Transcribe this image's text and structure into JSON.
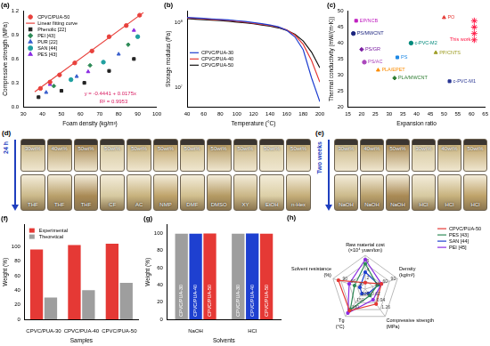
{
  "chart_data": [
    {
      "type": "scatter",
      "title": "(a)",
      "x_label": "Foam density (kg/m³)",
      "y_label": "Compressive strength (MPa)",
      "xlim": [
        30,
        100
      ],
      "xticks": [
        30,
        40,
        50,
        60,
        70,
        80,
        90,
        100
      ],
      "ylim": [
        0,
        1.2
      ],
      "yticks": [
        {
          "value": 0,
          "label": "0.0"
        },
        0.3,
        0.6,
        0.9,
        1.2
      ],
      "grid": false,
      "legend": "upper left",
      "series": [
        {
          "name": "CPVC/PUA-50",
          "color": "#e8413c",
          "marker": "circle",
          "x": [
            39,
            44,
            49,
            57,
            66,
            75,
            84,
            91
          ],
          "values": [
            0.23,
            0.31,
            0.4,
            0.55,
            0.7,
            0.88,
            1.02,
            1.15
          ]
        },
        {
          "name": "Linear fitting curve",
          "color": "#e8413c",
          "type": "line",
          "line_style": "solid",
          "x": [
            36,
            93
          ],
          "values": [
            0.186,
            1.183
          ]
        },
        {
          "name": "Phenolic [22]",
          "color": "#222222",
          "marker": "square",
          "x": [
            38,
            50,
            62,
            75,
            88
          ],
          "values": [
            0.12,
            0.2,
            0.3,
            0.45,
            0.6
          ]
        },
        {
          "name": "PEI [43]",
          "color": "#2e8b57",
          "marker": "diamond",
          "x": [
            46,
            65,
            85
          ],
          "values": [
            0.26,
            0.52,
            0.78
          ]
        },
        {
          "name": "PUR [22]",
          "color": "#3a5fcd",
          "marker": "triangle",
          "x": [
            42,
            58,
            80
          ],
          "values": [
            0.18,
            0.38,
            0.66
          ]
        },
        {
          "name": "SAN [44]",
          "color": "#20a0a0",
          "marker": "circle",
          "x": [
            55,
            72,
            90
          ],
          "values": [
            0.34,
            0.56,
            0.88
          ]
        },
        {
          "name": "PES [43]",
          "color": "#8a2be2",
          "marker": "triangle",
          "x": [
            44,
            64,
            88
          ],
          "values": [
            0.28,
            0.44,
            0.96
          ]
        }
      ],
      "annotations": [
        {
          "text": "y = -0.4441 + 0.0175x",
          "x": 62,
          "y": 0.16
        },
        {
          "text": "R² = 0.9953",
          "x": 70,
          "y": 0.06
        }
      ]
    },
    {
      "type": "line",
      "title": "(b)",
      "x_label": "Temperature (°C)",
      "y_label": "Storage modulus (Pa)",
      "log": "y",
      "xlim": [
        40,
        200
      ],
      "xticks": [
        40,
        60,
        80,
        100,
        120,
        140,
        160,
        180,
        200
      ],
      "ylim": [
        5000000,
        150000000
      ],
      "yticks": [
        {
          "value": 10000000,
          "label": "10⁷"
        },
        {
          "value": 100000000,
          "label": "10⁸"
        }
      ],
      "grid": false,
      "legend": "left",
      "x": [
        40,
        50,
        60,
        70,
        80,
        90,
        100,
        110,
        120,
        130,
        140,
        150,
        160,
        170,
        180,
        190,
        200
      ],
      "series": [
        {
          "name": "CPVC/PUA-30",
          "color": "#1f3fd0",
          "values": [
            120000000,
            118000000,
            116000000,
            114000000,
            112000000,
            110000000,
            107000000,
            104000000,
            100000000,
            96000000,
            92000000,
            86000000,
            76000000,
            60000000,
            38000000,
            14000000,
            6000000
          ]
        },
        {
          "name": "CPVC/PUA-40",
          "color": "#e53935",
          "values": [
            118000000,
            116000000,
            114000000,
            112000000,
            110000000,
            108000000,
            105000000,
            102000000,
            98000000,
            94000000,
            90000000,
            85000000,
            77000000,
            64000000,
            46000000,
            26000000,
            12000000
          ]
        },
        {
          "name": "CPVC/PUA-50",
          "color": "#111111",
          "values": [
            115000000,
            113000000,
            111000000,
            109000000,
            107000000,
            105000000,
            102000000,
            99000000,
            96000000,
            92000000,
            88000000,
            83000000,
            76000000,
            66000000,
            52000000,
            35000000,
            20000000
          ]
        }
      ]
    },
    {
      "type": "scatter",
      "title": "(c)",
      "x_label": "Expansion ratio",
      "y_label": "Thermal conductivity (mW/(m·K))",
      "xlim": [
        15,
        65
      ],
      "xticks": [
        15,
        20,
        25,
        30,
        35,
        40,
        45,
        50,
        55,
        60,
        65
      ],
      "ylim": [
        20,
        50
      ],
      "yticks": [
        20,
        25,
        30,
        35,
        40,
        45,
        50
      ],
      "grid": false,
      "legend": "points",
      "series": [
        {
          "name": "EP/NCB",
          "color": "#c020c0",
          "marker": "square",
          "x": [
            18
          ],
          "values": [
            47
          ]
        },
        {
          "name": "PS/MWCNT",
          "color": "#1a237e",
          "marker": "circle",
          "x": [
            17
          ],
          "values": [
            43
          ]
        },
        {
          "name": "PO",
          "color": "#e53935",
          "marker": "triangle",
          "x": [
            50
          ],
          "values": [
            48
          ]
        },
        {
          "name": "PS/GR",
          "color": "#7b1fa2",
          "marker": "diamond",
          "x": [
            20
          ],
          "values": [
            38
          ]
        },
        {
          "name": "PS/AC",
          "color": "#ab47bc",
          "marker": "circle",
          "x": [
            21
          ],
          "values": [
            34
          ]
        },
        {
          "name": "PLA/EPET",
          "color": "#fb8c00",
          "marker": "triangle",
          "x": [
            26
          ],
          "values": [
            31.5
          ]
        },
        {
          "name": "PS",
          "color": "#1e88e5",
          "marker": "square",
          "x": [
            33
          ],
          "values": [
            35.5
          ]
        },
        {
          "name": "PLA/MWCNT",
          "color": "#2e7d32",
          "marker": "diamond",
          "x": [
            32
          ],
          "values": [
            29
          ]
        },
        {
          "name": "c-PVC-M2",
          "color": "#00897b",
          "marker": "circle",
          "x": [
            38
          ],
          "values": [
            40
          ]
        },
        {
          "name": "PP/CNTS",
          "color": "#9e9d24",
          "marker": "triangle",
          "x": [
            47
          ],
          "values": [
            37
          ]
        },
        {
          "name": "c-PVC-M1",
          "color": "#283593",
          "marker": "square",
          "x": [
            52
          ],
          "values": [
            28
          ]
        },
        {
          "name": "This work",
          "color": "#ff1744",
          "marker": "star",
          "x": [
            61,
            61,
            61,
            61
          ],
          "values": [
            41,
            43,
            45,
            47
          ]
        }
      ]
    },
    {
      "type": "bar",
      "title": "(f)",
      "x_label": "Samples",
      "y_label": "Weight (%)",
      "categories": [
        "CPVC/PUA-30",
        "CPVC/PUA-40",
        "CPVC/PUA-50"
      ],
      "ylim": [
        0,
        130
      ],
      "yticks": [
        0,
        20,
        40,
        60,
        80,
        100
      ],
      "grid": false,
      "legend": "upper left",
      "series": [
        {
          "name": "Experimental",
          "color": "#e53935",
          "values": [
            96,
            102,
            104
          ]
        },
        {
          "name": "Theoretical",
          "color": "#9e9e9e",
          "values": [
            30,
            40,
            50
          ]
        }
      ]
    },
    {
      "type": "bar",
      "title": "(g)",
      "x_label": "Solvents",
      "y_label": "Weight (%)",
      "categories": [
        "NaOH",
        "HCl"
      ],
      "ylim": [
        0,
        110
      ],
      "yticks": [
        0,
        20,
        40,
        60,
        80,
        100
      ],
      "grid": false,
      "legend": "inside",
      "series": [
        {
          "name": "CPVC/PUA-30",
          "color": "#9e9e9e",
          "values": [
            99.5,
            99.4
          ]
        },
        {
          "name": "CPVC/PUA-40",
          "color": "#1e40d0",
          "values": [
            99.6,
            99.7
          ]
        },
        {
          "name": "CPVC/PUA-50",
          "color": "#e53935",
          "values": [
            99.8,
            99.6
          ]
        }
      ]
    },
    {
      "type": "radar",
      "title": "(h)",
      "legend": "right",
      "axes": [
        {
          "name": "Raw material cost (×10⁴ yuan/ton)",
          "lim": [
            0,
            8
          ],
          "ticks": [
            2,
            4,
            6
          ]
        },
        {
          "name": "Density (kg/m³)",
          "lim": [
            0,
            120
          ],
          "ticks": [
            30,
            60,
            90
          ]
        },
        {
          "name": "Compressive strength (MPa)",
          "lim": [
            0.3,
            1.58
          ],
          "ticks": [
            0.62,
            0.94,
            1.26
          ]
        },
        {
          "name": "Tg (°C)",
          "lim": [
            90,
            210
          ],
          "ticks": [
            120,
            150,
            180
          ]
        },
        {
          "name": "Solvent resistance (%)",
          "lim": [
            0,
            120
          ],
          "ticks": [
            30,
            60,
            90
          ]
        }
      ],
      "series": [
        {
          "name": "CPVC/PUA-50",
          "color": "#e53935",
          "values": [
            1.5,
            60,
            1.0,
            185,
            100
          ]
        },
        {
          "name": "PES [43]",
          "color": "#2e8b57",
          "values": [
            6,
            45,
            0.6,
            180,
            40
          ]
        },
        {
          "name": "SAN [44]",
          "color": "#1e40d0",
          "values": [
            4,
            50,
            0.5,
            110,
            20
          ]
        },
        {
          "name": "PEI [45]",
          "color": "#8a2be2",
          "values": [
            7,
            60,
            0.8,
            195,
            60
          ]
        }
      ]
    }
  ],
  "photos": [
    {
      "title": "(d)",
      "time": "24 h",
      "samples": [
        "30wt%",
        "40wt%",
        "50wt%",
        "50wt%",
        "50wt%",
        "50wt%",
        "50wt%",
        "50wt%",
        "50wt%",
        "50wt%",
        "50wt%"
      ],
      "solvents": [
        "THF",
        "THF",
        "THF",
        "CF",
        "AC",
        "NMP",
        "DMF",
        "DMSO",
        "XY",
        "EtOH",
        "n-Hex"
      ]
    },
    {
      "title": "(e)",
      "time": "Two weeks",
      "samples": [
        "30wt%",
        "40wt%",
        "50wt%",
        "30wt%",
        "40wt%",
        "50wt%"
      ],
      "solvents": [
        "NaOH",
        "NaOH",
        "NaOH",
        "HCl",
        "HCl",
        "HCl"
      ]
    }
  ]
}
